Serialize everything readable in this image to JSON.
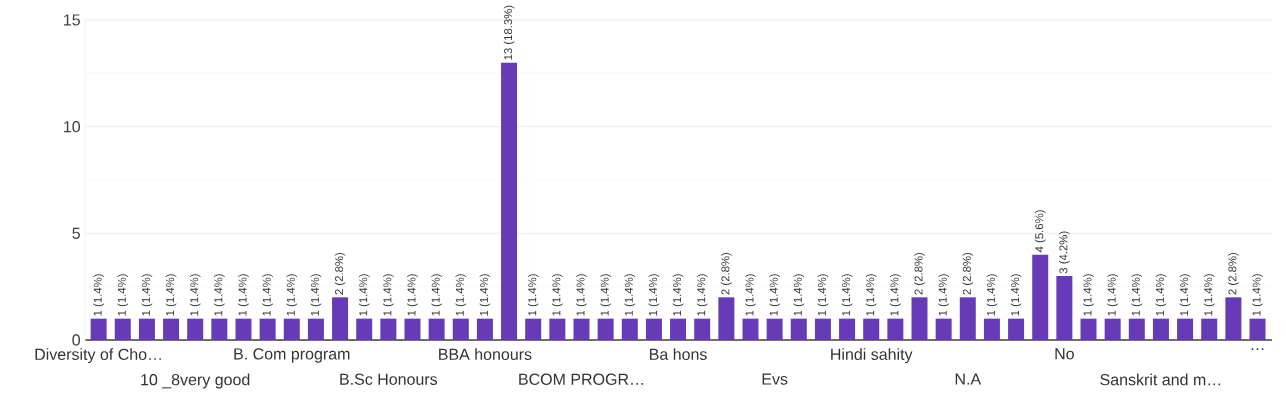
{
  "chart_data": {
    "type": "bar",
    "categories": [
      "Diversity of Cho…",
      null,
      null,
      null,
      "10 _8very good",
      null,
      null,
      null,
      "B. Com program",
      null,
      null,
      null,
      "B.Sc Honours",
      null,
      null,
      null,
      "BBA honours",
      null,
      null,
      null,
      "BCOM PROGR…",
      null,
      null,
      null,
      "Ba hons",
      null,
      null,
      null,
      "Evs",
      null,
      null,
      null,
      "Hindi sahity",
      null,
      null,
      null,
      "N.A",
      null,
      null,
      null,
      "No",
      null,
      null,
      null,
      "Sanskrit and m…",
      null,
      null,
      null,
      "…"
    ],
    "values": [
      1,
      1,
      1,
      1,
      1,
      1,
      1,
      1,
      1,
      1,
      2,
      1,
      1,
      1,
      1,
      1,
      1,
      13,
      1,
      1,
      1,
      1,
      1,
      1,
      1,
      1,
      2,
      1,
      1,
      1,
      1,
      1,
      1,
      1,
      2,
      1,
      2,
      1,
      1,
      4,
      3,
      1,
      1,
      1,
      1,
      1,
      1,
      2,
      1
    ],
    "value_labels": [
      "1 (1.4%)",
      "1 (1.4%)",
      "1 (1.4%)",
      "1 (1.4%)",
      "1 (1.4%)",
      "1 (1.4%)",
      "1 (1.4%)",
      "1 (1.4%)",
      "1 (1.4%)",
      "1 (1.4%)",
      "2 (2.8%)",
      "1 (1.4%)",
      "1 (1.4%)",
      "1 (1.4%)",
      "1 (1.4%)",
      "1 (1.4%)",
      "1 (1.4%)",
      "13 (18.3%)",
      "1 (1.4%)",
      "1 (1.4%)",
      "1 (1.4%)",
      "1 (1.4%)",
      "1 (1.4%)",
      "1 (1.4%)",
      "1 (1.4%)",
      "1 (1.4%)",
      "2 (2.8%)",
      "1 (1.4%)",
      "1 (1.4%)",
      "1 (1.4%)",
      "1 (1.4%)",
      "1 (1.4%)",
      "1 (1.4%)",
      "1 (1.4%)",
      "2 (2.8%)",
      "1 (1.4%)",
      "2 (2.8%)",
      "1 (1.4%)",
      "1 (1.4%)",
      "4 (5.6%)",
      "3 (4.2%)",
      "1 (1.4%)",
      "1 (1.4%)",
      "1 (1.4%)",
      "1 (1.4%)",
      "1 (1.4%)",
      "1 (1.4%)",
      "2 (2.8%)",
      "1 (1.4%)"
    ],
    "color": "#673ab7",
    "ylim": [
      0,
      15
    ],
    "yticks": [
      0,
      5,
      10,
      15
    ],
    "grid": "y"
  }
}
